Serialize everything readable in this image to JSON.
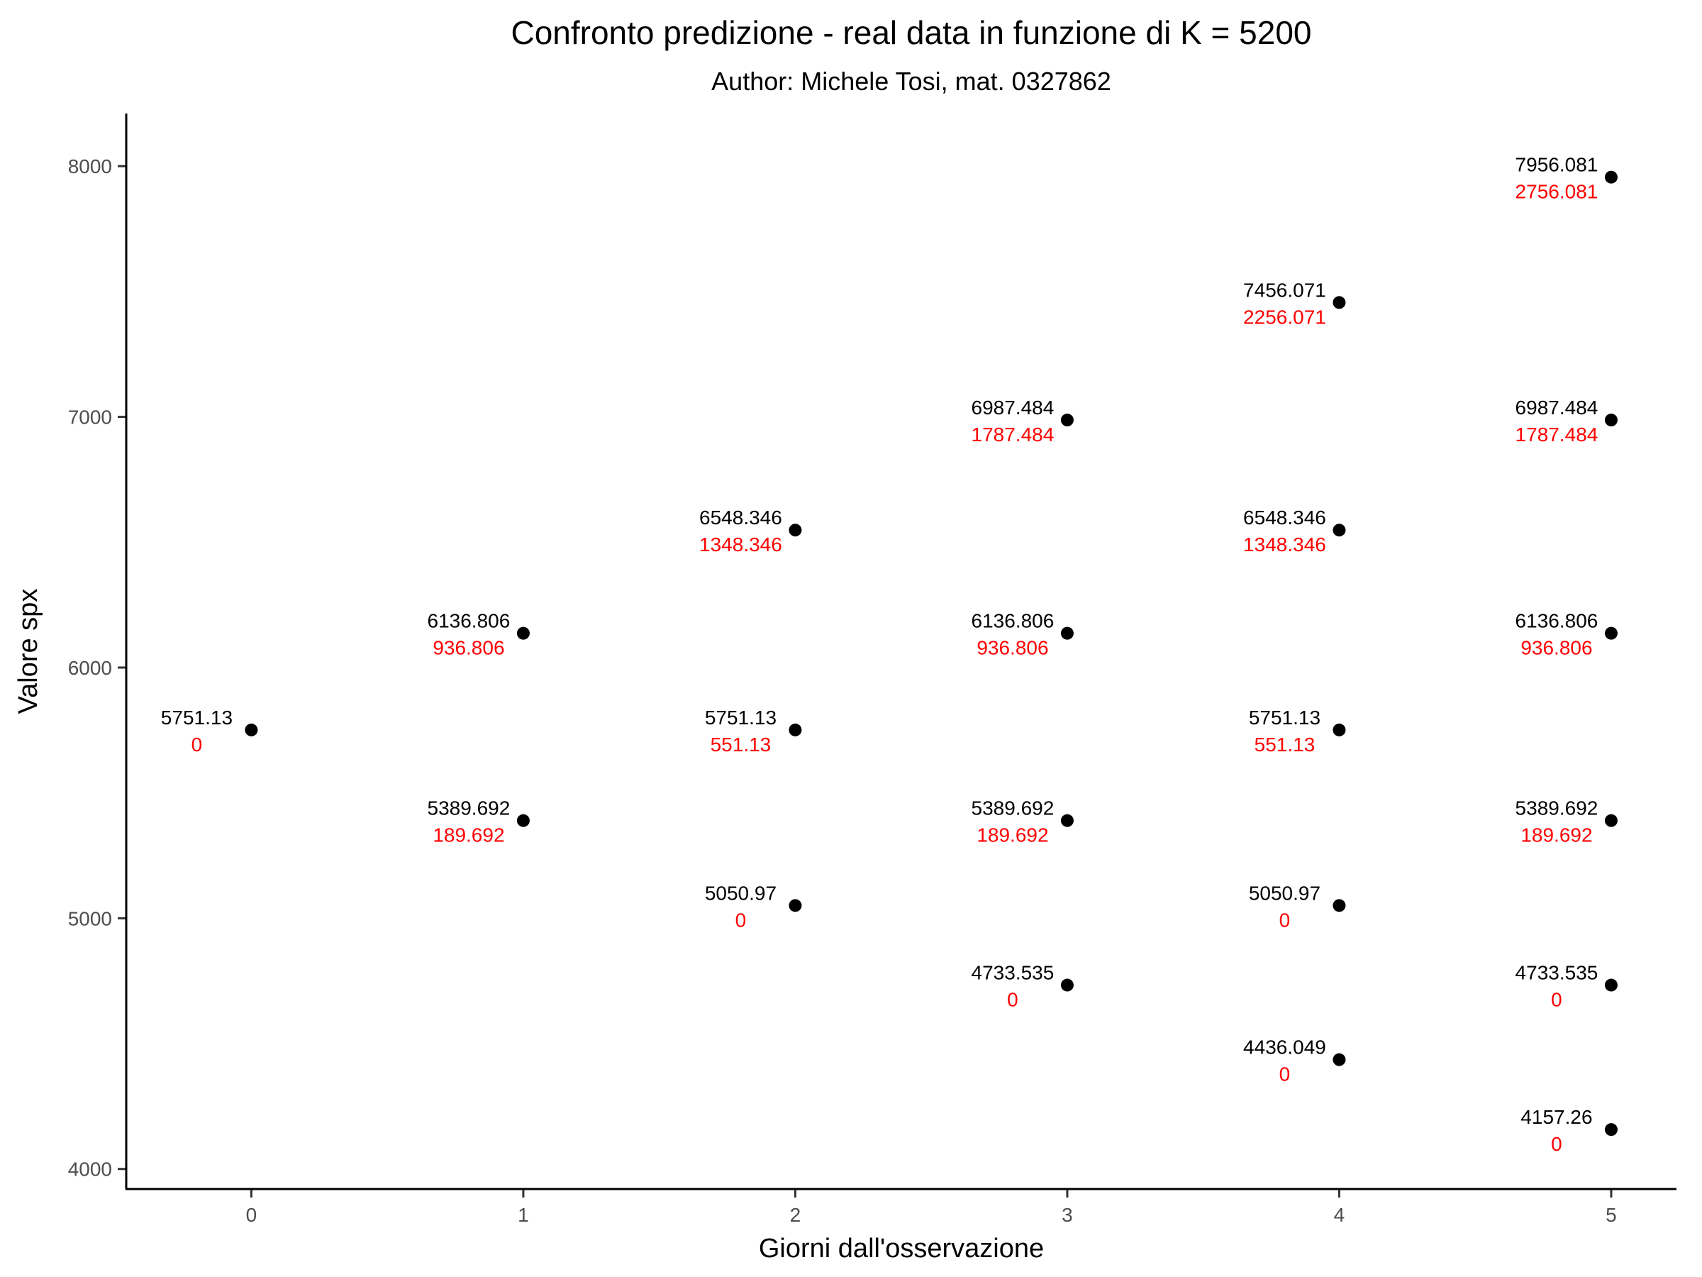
{
  "chart_data": {
    "type": "scatter",
    "title": "Confronto predizione - real data in funzione di K = 5200",
    "subtitle": "Author: Michele Tosi, mat. 0327862",
    "xlabel": "Giorni dall'osservazione",
    "ylabel": "Valore spx",
    "xlim": [
      -0.46,
      5.24
    ],
    "ylim": [
      3920,
      8210
    ],
    "x_ticks": [
      0,
      1,
      2,
      3,
      4,
      5
    ],
    "x_tick_labels": [
      "0",
      "1",
      "2",
      "3",
      "4",
      "5"
    ],
    "y_ticks": [
      4000,
      5000,
      6000,
      7000,
      8000
    ],
    "y_tick_labels": [
      "4000",
      "5000",
      "6000",
      "7000",
      "8000"
    ],
    "grid": false,
    "legend": "none",
    "point_color": "#000000",
    "value_label_color": "#000000",
    "diff_label_color": "#ff0000",
    "points": [
      {
        "x": 0,
        "y": 5751.13,
        "label": "5751.13",
        "diff": "0"
      },
      {
        "x": 1,
        "y": 6136.806,
        "label": "6136.806",
        "diff": "936.806"
      },
      {
        "x": 1,
        "y": 5389.692,
        "label": "5389.692",
        "diff": "189.692"
      },
      {
        "x": 2,
        "y": 6548.346,
        "label": "6548.346",
        "diff": "1348.346"
      },
      {
        "x": 2,
        "y": 5751.13,
        "label": "5751.13",
        "diff": "551.13"
      },
      {
        "x": 2,
        "y": 5050.97,
        "label": "5050.97",
        "diff": "0"
      },
      {
        "x": 3,
        "y": 6987.484,
        "label": "6987.484",
        "diff": "1787.484"
      },
      {
        "x": 3,
        "y": 6136.806,
        "label": "6136.806",
        "diff": "936.806"
      },
      {
        "x": 3,
        "y": 5389.692,
        "label": "5389.692",
        "diff": "189.692"
      },
      {
        "x": 3,
        "y": 4733.535,
        "label": "4733.535",
        "diff": "0"
      },
      {
        "x": 4,
        "y": 7456.071,
        "label": "7456.071",
        "diff": "2256.071"
      },
      {
        "x": 4,
        "y": 6548.346,
        "label": "6548.346",
        "diff": "1348.346"
      },
      {
        "x": 4,
        "y": 5751.13,
        "label": "5751.13",
        "diff": "551.13"
      },
      {
        "x": 4,
        "y": 5050.97,
        "label": "5050.97",
        "diff": "0"
      },
      {
        "x": 4,
        "y": 4436.049,
        "label": "4436.049",
        "diff": "0"
      },
      {
        "x": 5,
        "y": 7956.081,
        "label": "7956.081",
        "diff": "2756.081"
      },
      {
        "x": 5,
        "y": 6987.484,
        "label": "6987.484",
        "diff": "1787.484"
      },
      {
        "x": 5,
        "y": 6136.806,
        "label": "6136.806",
        "diff": "936.806"
      },
      {
        "x": 5,
        "y": 5389.692,
        "label": "5389.692",
        "diff": "189.692"
      },
      {
        "x": 5,
        "y": 4733.535,
        "label": "4733.535",
        "diff": "0"
      },
      {
        "x": 5,
        "y": 4157.26,
        "label": "4157.26",
        "diff": "0"
      }
    ]
  }
}
